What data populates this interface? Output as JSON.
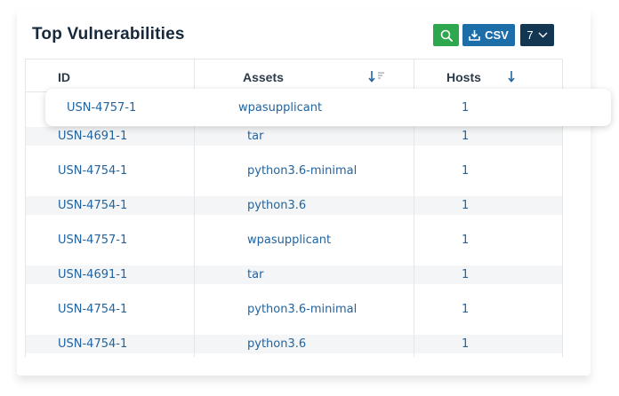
{
  "title": "Top Vulnerabilities",
  "toolbar": {
    "search_icon": "search-icon",
    "csv_label": "CSV",
    "csv_icon": "download-icon",
    "rows_value": "7",
    "rows_icon": "chevron-down-icon"
  },
  "columns": {
    "id": "ID",
    "assets": "Assets",
    "hosts": "Hosts"
  },
  "dragged_row": {
    "id": "USN-4757-1",
    "asset": "wpasupplicant",
    "hosts": "1"
  },
  "rows": [
    {
      "id": "USN-4691-1",
      "asset": "tar",
      "hosts": "1"
    },
    {
      "id": "USN-4754-1",
      "asset": "python3.6-minimal",
      "hosts": "1"
    },
    {
      "id": "USN-4754-1",
      "asset": "python3.6",
      "hosts": "1"
    },
    {
      "id": "USN-4757-1",
      "asset": "wpasupplicant",
      "hosts": "1"
    },
    {
      "id": "USN-4691-1",
      "asset": "tar",
      "hosts": "1"
    },
    {
      "id": "USN-4754-1",
      "asset": "python3.6-minimal",
      "hosts": "1"
    },
    {
      "id": "USN-4754-1",
      "asset": "python3.6",
      "hosts": "1"
    }
  ],
  "colors": {
    "search_button": "#2ea84f",
    "csv_button": "#1c6da8",
    "rows_button": "#133753",
    "link": "#2164a0"
  }
}
